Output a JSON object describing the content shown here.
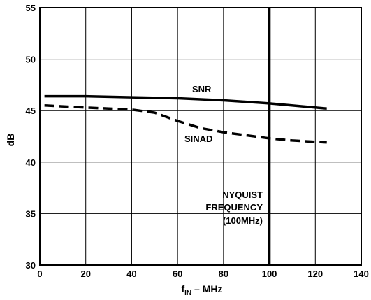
{
  "chart_data": {
    "type": "line",
    "title": "",
    "xlabel": "f",
    "xlabel_sub": "IN",
    "xlabel_unit": " – MHz",
    "ylabel": "dB",
    "xlim": [
      0,
      140
    ],
    "ylim": [
      30,
      55
    ],
    "x_ticks": [
      0,
      20,
      40,
      60,
      80,
      100,
      120,
      140
    ],
    "y_ticks": [
      30,
      35,
      40,
      45,
      50,
      55
    ],
    "grid": true,
    "series": [
      {
        "name": "SNR",
        "style": "solid",
        "color": "#000000",
        "x": [
          2,
          20,
          40,
          60,
          80,
          100,
          125
        ],
        "y": [
          46.4,
          46.4,
          46.3,
          46.2,
          46.0,
          45.7,
          45.2
        ]
      },
      {
        "name": "SINAD",
        "style": "dashed",
        "color": "#000000",
        "x": [
          2,
          20,
          40,
          50,
          60,
          70,
          80,
          90,
          100,
          110,
          125
        ],
        "y": [
          45.5,
          45.3,
          45.1,
          44.8,
          44.0,
          43.3,
          42.9,
          42.6,
          42.3,
          42.1,
          41.9
        ]
      }
    ],
    "annotation": {
      "lines": [
        "NYQUIST",
        "FREQUENCY",
        "(100MHz)"
      ],
      "x": 100
    }
  }
}
